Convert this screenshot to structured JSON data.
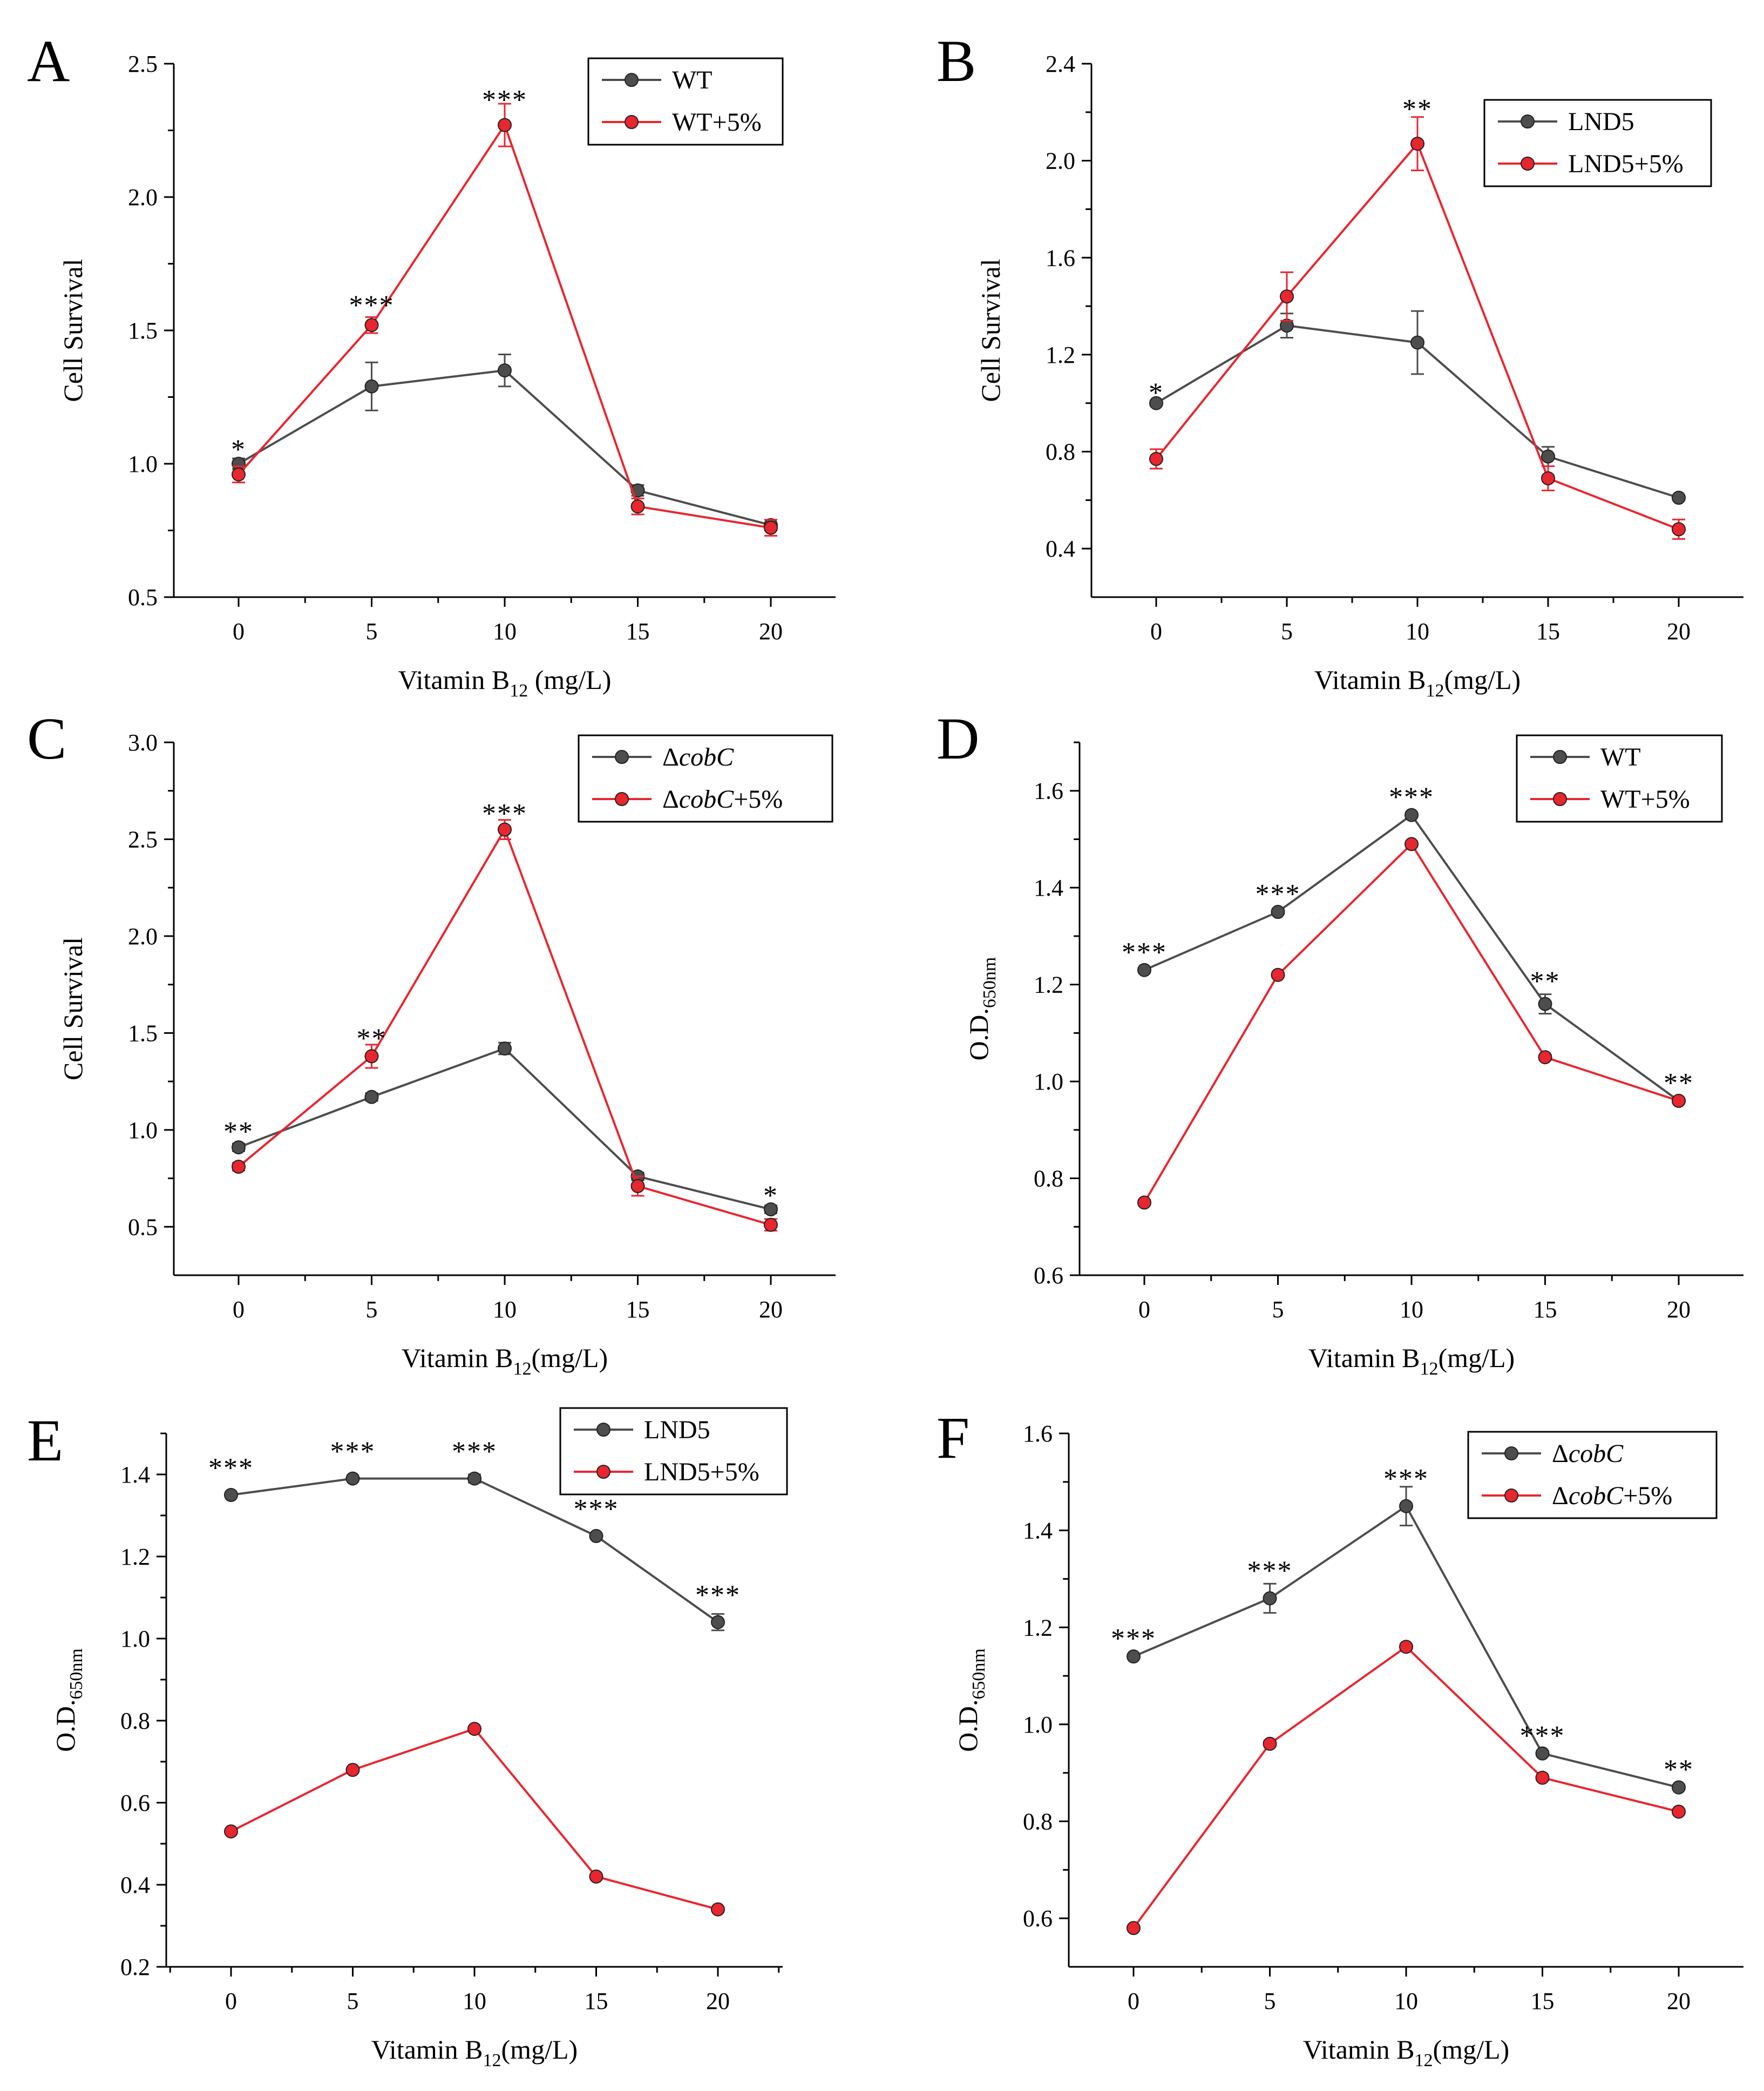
{
  "figure": {
    "background": "#ffffff",
    "colors": {
      "control": "#4d4d4d",
      "treated": "#e8262f",
      "axis": "#000000"
    }
  },
  "chart_data": [
    {
      "id": "A",
      "type": "line",
      "panel_letter": "A",
      "xlabel_prefix": "Vitamin B",
      "xlabel_sub": "12",
      "xlabel_suffix": " (mg/L)",
      "ylabel_prefix": "Cell Survival",
      "ylabel_sub": "",
      "x": [
        0,
        5,
        10,
        15,
        20
      ],
      "xticks": [
        "0",
        "5",
        "10",
        "15",
        "20"
      ],
      "ylim": [
        0.5,
        2.5
      ],
      "yticks": [
        0.5,
        1.0,
        1.5,
        2.0,
        2.5
      ],
      "ytick_labels": [
        "0.5",
        "1.0",
        "1.5",
        "2.0",
        "2.5"
      ],
      "legend": {
        "position": "top-right",
        "entries": [
          {
            "prefix": "WT",
            "italic": "",
            "suffix": ""
          },
          {
            "prefix": "WT+5%",
            "italic": "",
            "suffix": ""
          }
        ]
      },
      "series": [
        {
          "name": "WT",
          "color": "#4d4d4d",
          "values": [
            1.0,
            1.29,
            1.35,
            0.9,
            0.77
          ],
          "errors": [
            0.02,
            0.09,
            0.06,
            0.02,
            0.02
          ]
        },
        {
          "name": "WT+5%",
          "color": "#e8262f",
          "values": [
            0.96,
            1.52,
            2.27,
            0.84,
            0.76
          ],
          "errors": [
            0.03,
            0.03,
            0.08,
            0.03,
            0.03
          ]
        }
      ],
      "significance": [
        {
          "x": 0,
          "y": 1.06,
          "label": "*"
        },
        {
          "x": 5,
          "y": 1.6,
          "label": "***"
        },
        {
          "x": 10,
          "y": 2.37,
          "label": "***"
        }
      ]
    },
    {
      "id": "B",
      "type": "line",
      "panel_letter": "B",
      "xlabel_prefix": "Vitamin B",
      "xlabel_sub": "12",
      "xlabel_suffix": "(mg/L)",
      "ylabel_prefix": "Cell Survival",
      "ylabel_sub": "",
      "x": [
        0,
        5,
        10,
        15,
        20
      ],
      "xticks": [
        "0",
        "5",
        "10",
        "15",
        "20"
      ],
      "ylim": [
        0.2,
        2.4
      ],
      "yticks": [
        0.4,
        0.8,
        1.2,
        1.6,
        2.0,
        2.4
      ],
      "ytick_labels": [
        "0.4",
        "0.8",
        "1.2",
        "1.6",
        "2.0",
        "2.4"
      ],
      "legend": {
        "position": "top-right",
        "entries": [
          {
            "prefix": "LND5",
            "italic": "",
            "suffix": ""
          },
          {
            "prefix": "LND5+5%",
            "italic": "",
            "suffix": ""
          }
        ]
      },
      "series": [
        {
          "name": "LND5",
          "color": "#4d4d4d",
          "values": [
            1.0,
            1.32,
            1.25,
            0.78,
            0.61
          ],
          "errors": [
            0.01,
            0.05,
            0.13,
            0.04,
            0.01
          ]
        },
        {
          "name": "LND5+5%",
          "color": "#e8262f",
          "values": [
            0.77,
            1.44,
            2.07,
            0.69,
            0.48
          ],
          "errors": [
            0.04,
            0.1,
            0.11,
            0.05,
            0.04
          ]
        }
      ],
      "significance": [
        {
          "x": 0,
          "y": 1.05,
          "label": "*"
        },
        {
          "x": 10,
          "y": 2.22,
          "label": "**"
        }
      ]
    },
    {
      "id": "C",
      "type": "line",
      "panel_letter": "C",
      "xlabel_prefix": "Vitamin B",
      "xlabel_sub": "12",
      "xlabel_suffix": "(mg/L)",
      "ylabel_prefix": "Cell Survival",
      "ylabel_sub": "",
      "x": [
        0,
        5,
        10,
        15,
        20
      ],
      "xticks": [
        "0",
        "5",
        "10",
        "15",
        "20"
      ],
      "ylim": [
        0.25,
        3.0
      ],
      "yticks": [
        0.5,
        1.0,
        1.5,
        2.0,
        2.5,
        3.0
      ],
      "ytick_labels": [
        "0.5",
        "1.0",
        "1.5",
        "2.0",
        "2.5",
        "3.0"
      ],
      "legend": {
        "position": "top-right",
        "entries": [
          {
            "prefix": "Δ",
            "italic": "cobC",
            "suffix": ""
          },
          {
            "prefix": "Δ",
            "italic": "cobC",
            "suffix": "+5%"
          }
        ]
      },
      "series": [
        {
          "name": "ΔcobC",
          "color": "#4d4d4d",
          "values": [
            0.91,
            1.17,
            1.42,
            0.76,
            0.59
          ],
          "errors": [
            0.02,
            0.02,
            0.03,
            0.02,
            0.02
          ]
        },
        {
          "name": "ΔcobC+5%",
          "color": "#e8262f",
          "values": [
            0.81,
            1.38,
            2.55,
            0.71,
            0.51
          ],
          "errors": [
            0.02,
            0.06,
            0.05,
            0.05,
            0.03
          ]
        }
      ],
      "significance": [
        {
          "x": 0,
          "y": 1.0,
          "label": "**"
        },
        {
          "x": 5,
          "y": 1.48,
          "label": "**"
        },
        {
          "x": 10,
          "y": 2.64,
          "label": "***"
        },
        {
          "x": 20,
          "y": 0.67,
          "label": "*"
        }
      ]
    },
    {
      "id": "D",
      "type": "line",
      "panel_letter": "D",
      "xlabel_prefix": "Vitamin B",
      "xlabel_sub": "12",
      "xlabel_suffix": "(mg/L)",
      "ylabel_prefix": "O.D.",
      "ylabel_sub": "650nm",
      "x": [
        0,
        5,
        10,
        15,
        20
      ],
      "xticks": [
        "0",
        "5",
        "10",
        "15",
        "20"
      ],
      "ylim": [
        0.6,
        1.7
      ],
      "yticks": [
        0.6,
        0.8,
        1.0,
        1.2,
        1.4,
        1.6
      ],
      "ytick_labels": [
        "0.6",
        "0.8",
        "1.0",
        "1.2",
        "1.4",
        "1.6"
      ],
      "legend": {
        "position": "top-right",
        "entries": [
          {
            "prefix": "WT",
            "italic": "",
            "suffix": ""
          },
          {
            "prefix": "WT+5%",
            "italic": "",
            "suffix": ""
          }
        ]
      },
      "series": [
        {
          "name": "WT",
          "color": "#4d4d4d",
          "values": [
            1.23,
            1.35,
            1.55,
            1.16,
            0.96
          ],
          "errors": [
            0.005,
            0.005,
            0.005,
            0.02,
            0.005
          ]
        },
        {
          "name": "WT+5%",
          "color": "#e8262f",
          "values": [
            0.75,
            1.22,
            1.49,
            1.05,
            0.96
          ],
          "errors": [
            0.005,
            0.005,
            0.005,
            0.005,
            0.005
          ]
        }
      ],
      "significance": [
        {
          "x": 0,
          "y": 1.27,
          "label": "***"
        },
        {
          "x": 5,
          "y": 1.39,
          "label": "***"
        },
        {
          "x": 10,
          "y": 1.59,
          "label": "***"
        },
        {
          "x": 15,
          "y": 1.21,
          "label": "**"
        },
        {
          "x": 20,
          "y": 1.0,
          "label": "**"
        }
      ]
    },
    {
      "id": "E",
      "type": "line",
      "panel_letter": "E",
      "xlabel_prefix": "Vitamin B",
      "xlabel_sub": "12",
      "xlabel_suffix": "(mg/L)",
      "ylabel_prefix": "O.D.",
      "ylabel_sub": "650nm",
      "x": [
        0,
        5,
        10,
        15,
        20
      ],
      "xticks": [
        "0",
        "5",
        "10",
        "15",
        "20"
      ],
      "ylim": [
        0.2,
        1.5
      ],
      "yticks": [
        0.2,
        0.4,
        0.6,
        0.8,
        1.0,
        1.2,
        1.4
      ],
      "ytick_labels": [
        "0.2",
        "0.4",
        "0.6",
        "0.8",
        "1.0",
        "1.2",
        "1.4"
      ],
      "legend": {
        "position": "top-right",
        "entries": [
          {
            "prefix": "LND5",
            "italic": "",
            "suffix": ""
          },
          {
            "prefix": "LND5+5%",
            "italic": "",
            "suffix": ""
          }
        ]
      },
      "series": [
        {
          "name": "LND5",
          "color": "#4d4d4d",
          "values": [
            1.35,
            1.39,
            1.39,
            1.25,
            1.04
          ],
          "errors": [
            0.005,
            0.005,
            0.01,
            0.005,
            0.02
          ]
        },
        {
          "name": "LND5+5%",
          "color": "#e8262f",
          "values": [
            0.53,
            0.68,
            0.78,
            0.42,
            0.34
          ],
          "errors": [
            0.005,
            0.005,
            0.005,
            0.005,
            0.005
          ]
        }
      ],
      "significance": [
        {
          "x": 0,
          "y": 1.42,
          "label": "***"
        },
        {
          "x": 5,
          "y": 1.46,
          "label": "***"
        },
        {
          "x": 10,
          "y": 1.46,
          "label": "***"
        },
        {
          "x": 15,
          "y": 1.32,
          "label": "***"
        },
        {
          "x": 20,
          "y": 1.11,
          "label": "***"
        }
      ]
    },
    {
      "id": "F",
      "type": "line",
      "panel_letter": "F",
      "xlabel_prefix": "Vitamin B",
      "xlabel_sub": "12",
      "xlabel_suffix": "(mg/L)",
      "ylabel_prefix": "O.D.",
      "ylabel_sub": "650nm",
      "x": [
        0,
        5,
        10,
        15,
        20
      ],
      "xticks": [
        "0",
        "5",
        "10",
        "15",
        "20"
      ],
      "ylim": [
        0.5,
        1.6
      ],
      "yticks": [
        0.6,
        0.8,
        1.0,
        1.2,
        1.4,
        1.6
      ],
      "ytick_labels": [
        "0.6",
        "0.8",
        "1.0",
        "1.2",
        "1.4",
        "1.6"
      ],
      "legend": {
        "position": "top-right",
        "entries": [
          {
            "prefix": "Δ",
            "italic": "cobC",
            "suffix": ""
          },
          {
            "prefix": "Δ",
            "italic": "cobC",
            "suffix": "+5%"
          }
        ]
      },
      "series": [
        {
          "name": "ΔcobC",
          "color": "#4d4d4d",
          "values": [
            1.14,
            1.26,
            1.45,
            0.94,
            0.87
          ],
          "errors": [
            0.005,
            0.03,
            0.04,
            0.005,
            0.005
          ]
        },
        {
          "name": "ΔcobC+5%",
          "color": "#e8262f",
          "values": [
            0.58,
            0.96,
            1.16,
            0.89,
            0.82
          ],
          "errors": [
            0.005,
            0.005,
            0.005,
            0.005,
            0.005
          ]
        }
      ],
      "significance": [
        {
          "x": 0,
          "y": 1.18,
          "label": "***"
        },
        {
          "x": 5,
          "y": 1.32,
          "label": "***"
        },
        {
          "x": 10,
          "y": 1.51,
          "label": "***"
        },
        {
          "x": 15,
          "y": 0.98,
          "label": "***"
        },
        {
          "x": 20,
          "y": 0.91,
          "label": "**"
        }
      ]
    }
  ]
}
